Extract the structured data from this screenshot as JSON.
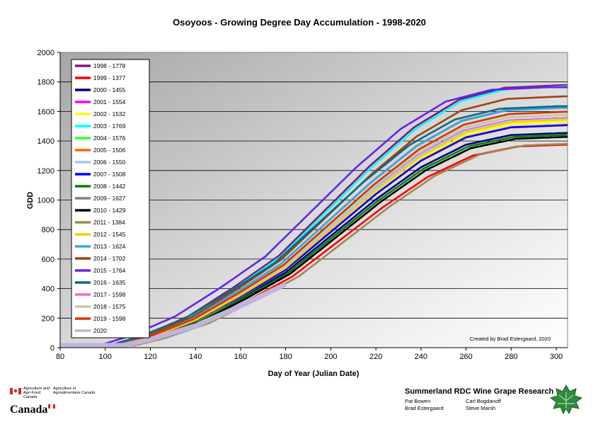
{
  "chart_data": {
    "type": "line",
    "title": "Osoyoos - Growing Degree Day Accumulation - 1998-2020",
    "xlabel": "Day of Year (Julian Date)",
    "ylabel": "GDD",
    "xlim": [
      80,
      305
    ],
    "ylim": [
      0,
      2000
    ],
    "x_ticks": [
      80,
      100,
      120,
      140,
      160,
      180,
      200,
      220,
      240,
      260,
      280,
      300
    ],
    "y_ticks": [
      0,
      200,
      400,
      600,
      800,
      1000,
      1200,
      1400,
      1600,
      1800,
      2000
    ],
    "grid": "horizontal",
    "legend_position": "top-left",
    "annotation": "Created by Brad Estergaard, 2020",
    "series": [
      {
        "name": "1998 - 1778",
        "color": "#7b1a7b",
        "final": 1778,
        "shift": 3
      },
      {
        "name": "1999 - 1377",
        "color": "#ff0000",
        "final": 1377,
        "shift": -3
      },
      {
        "name": "2000 - 1455",
        "color": "#000080",
        "final": 1455,
        "shift": 0
      },
      {
        "name": "2001 - 1554",
        "color": "#ff00ff",
        "final": 1554,
        "shift": 1
      },
      {
        "name": "2002 - 1532",
        "color": "#ffff00",
        "final": 1532,
        "shift": -1
      },
      {
        "name": "2003 - 1769",
        "color": "#00ffff",
        "final": 1769,
        "shift": 2
      },
      {
        "name": "2004 - 1576",
        "color": "#33ff33",
        "final": 1576,
        "shift": 1
      },
      {
        "name": "2005 - 1506",
        "color": "#ff6600",
        "final": 1506,
        "shift": 0
      },
      {
        "name": "2006 - 1550",
        "color": "#99ccff",
        "final": 1550,
        "shift": 1
      },
      {
        "name": "2007 - 1508",
        "color": "#0000ff",
        "final": 1508,
        "shift": 0
      },
      {
        "name": "2008 - 1442",
        "color": "#008000",
        "final": 1442,
        "shift": -1
      },
      {
        "name": "2009 - 1627",
        "color": "#808080",
        "final": 1627,
        "shift": 2
      },
      {
        "name": "2010 - 1429",
        "color": "#000000",
        "final": 1429,
        "shift": -2
      },
      {
        "name": "2011 - 1384",
        "color": "#9a8a5a",
        "final": 1384,
        "shift": -6
      },
      {
        "name": "2012 - 1545",
        "color": "#ffcc00",
        "final": 1545,
        "shift": 0
      },
      {
        "name": "2013 - 1624",
        "color": "#33aadd",
        "final": 1624,
        "shift": 2
      },
      {
        "name": "2014 - 1702",
        "color": "#994411",
        "final": 1702,
        "shift": 2
      },
      {
        "name": "2015 - 1764",
        "color": "#6622ee",
        "final": 1764,
        "shift": 9
      },
      {
        "name": "2016 - 1635",
        "color": "#116688",
        "final": 1635,
        "shift": 5
      },
      {
        "name": "2017 - 1598",
        "color": "#ff66cc",
        "final": 1598,
        "shift": 1
      },
      {
        "name": "2018 - 1575",
        "color": "#c8c8a8",
        "final": 1575,
        "shift": 1
      },
      {
        "name": "2019 - 1598",
        "color": "#dd3300",
        "final": 1598,
        "shift": 1
      },
      {
        "name": "2020",
        "color": "#c0b4dc",
        "final": 430,
        "end_day": 180,
        "shift": 0
      }
    ]
  },
  "footer": {
    "aafc_en": "Agriculture and Agri-Food Canada",
    "aafc_fr": "Agriculture et Agroalimentaire Canada",
    "wordmark": "Canada",
    "org": "Summerland RDC Wine Grape Research",
    "people": [
      "Pat Bowen",
      "Carl Bogdanoff",
      "Brad Estergaard",
      "Steve Marsh"
    ]
  }
}
